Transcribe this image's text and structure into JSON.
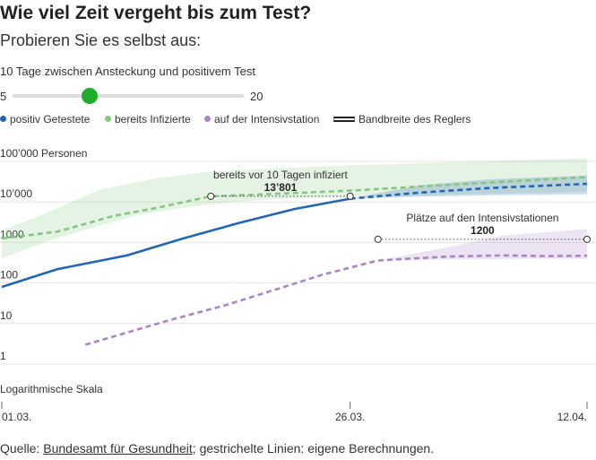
{
  "header": {
    "title": "Wie viel Zeit vergeht bis zum Test?",
    "subtitle": "Probieren Sie es selbst aus:"
  },
  "slider": {
    "label": "10 Tage zwischen Ansteckung und positivem Test",
    "min_label": "5",
    "max_label": "20",
    "min": 5,
    "max": 20,
    "value": 10,
    "knob_color": "#1fad2c"
  },
  "legend": [
    {
      "label": "positiv Getestete",
      "color": "#2266b4",
      "kind": "dot"
    },
    {
      "label": "bereits Infizierte",
      "color": "#86c77e",
      "kind": "dot"
    },
    {
      "label": "auf der Intensivstation",
      "color": "#a986c6",
      "kind": "dot"
    },
    {
      "label": "Bandbreite des Reglers",
      "color": "#222222",
      "kind": "bar"
    }
  ],
  "chart_data": {
    "type": "line",
    "y_scale": "log",
    "ylim": [
      1,
      100000
    ],
    "y_ticks": [
      {
        "value": 100000,
        "label": "100’000 Personen"
      },
      {
        "value": 10000,
        "label": "10’000"
      },
      {
        "value": 1000,
        "label": "1000"
      },
      {
        "value": 100,
        "label": "100"
      },
      {
        "value": 10,
        "label": "10"
      },
      {
        "value": 1,
        "label": "1"
      }
    ],
    "y_scale_note": "Logarithmische Skala",
    "x_ticks": [
      "01.03.",
      "26.03.",
      "12.04."
    ],
    "x_start": "01.03.",
    "x_end": "12.04.",
    "series": [
      {
        "name": "positiv Getestete",
        "color": "#2266b4",
        "style": "solid",
        "points": [
          [
            "01.03.",
            80
          ],
          [
            "05.03.",
            220
          ],
          [
            "10.03.",
            480
          ],
          [
            "14.03.",
            1250
          ],
          [
            "18.03.",
            3000
          ],
          [
            "22.03.",
            6700
          ],
          [
            "26.03.",
            12000
          ]
        ]
      },
      {
        "name": "positiv Getestete",
        "color": "#2266b4",
        "style": "dashed",
        "points": [
          [
            "26.03.",
            12000
          ],
          [
            "31.03.",
            17000
          ],
          [
            "05.04.",
            22000
          ],
          [
            "12.04.",
            28000
          ]
        ]
      },
      {
        "name": "bereits Infizierte",
        "color": "#86c77e",
        "style": "dashed",
        "points": [
          [
            "01.03.",
            1250
          ],
          [
            "05.03.",
            1850
          ],
          [
            "09.03.",
            4500
          ],
          [
            "12.03.",
            7000
          ],
          [
            "16.03.",
            13800
          ],
          [
            "20.03.",
            15500
          ],
          [
            "26.03.",
            19000
          ],
          [
            "31.03.",
            24000
          ],
          [
            "05.04.",
            30000
          ],
          [
            "12.04.",
            41000
          ]
        ]
      },
      {
        "name": "auf der Intensivstation",
        "color": "#a986c6",
        "style": "dashed",
        "points": [
          [
            "07.03.",
            3
          ],
          [
            "10.03.",
            6
          ],
          [
            "13.03.",
            12
          ],
          [
            "17.03.",
            28
          ],
          [
            "21.03.",
            75
          ],
          [
            "24.03.",
            160
          ],
          [
            "28.03.",
            360
          ],
          [
            "02.04.",
            450
          ],
          [
            "06.04.",
            480
          ],
          [
            "09.04.",
            460
          ],
          [
            "12.04.",
            470
          ]
        ]
      }
    ],
    "bands": [
      {
        "series": "bereits Infizierte",
        "color": "#86c77e",
        "lower": [
          [
            "01.03.",
            400
          ],
          [
            "04.03.",
            1000
          ],
          [
            "08.03.",
            2600
          ],
          [
            "11.03.",
            5000
          ],
          [
            "15.03.",
            8000
          ],
          [
            "19.03.",
            11000
          ],
          [
            "24.03.",
            13000
          ],
          [
            "30.03.",
            14000
          ],
          [
            "05.04.",
            16000
          ],
          [
            "12.04.",
            18000
          ]
        ],
        "upper": [
          [
            "01.03.",
            2000
          ],
          [
            "04.03.",
            5000
          ],
          [
            "08.03.",
            20000
          ],
          [
            "12.03.",
            38000
          ],
          [
            "16.03.",
            56000
          ],
          [
            "20.03.",
            66000
          ],
          [
            "26.03.",
            80000
          ],
          [
            "02.04.",
            95000
          ],
          [
            "12.04.",
            120000
          ]
        ]
      },
      {
        "series": "positiv Getestete",
        "color": "#2266b4",
        "lower": [
          [
            "26.03.",
            12000
          ],
          [
            "31.03.",
            13500
          ],
          [
            "05.04.",
            14500
          ],
          [
            "12.04.",
            15500
          ]
        ],
        "upper": [
          [
            "26.03.",
            12000
          ],
          [
            "31.03.",
            26000
          ],
          [
            "05.04.",
            36000
          ],
          [
            "12.04.",
            45000
          ]
        ]
      },
      {
        "series": "auf der Intensivstation",
        "color": "#a986c6",
        "lower": [
          [
            "28.03.",
            360
          ],
          [
            "02.04.",
            380
          ],
          [
            "06.04.",
            390
          ],
          [
            "12.04.",
            395
          ]
        ],
        "upper": [
          [
            "28.03.",
            360
          ],
          [
            "02.04.",
            760
          ],
          [
            "06.04.",
            1500
          ],
          [
            "12.04.",
            2150
          ]
        ]
      }
    ],
    "annotations": [
      {
        "title": "bereits vor 10 Tagen infiziert",
        "value_label": "13’801",
        "from": [
          "16.03.",
          13801
        ],
        "to": [
          "26.03.",
          13801
        ]
      },
      {
        "title": "Plätze auf den Intensivstationen",
        "value_label": "1200",
        "from": [
          "28.03.",
          1200
        ],
        "to": [
          "12.04.",
          1200
        ]
      }
    ]
  },
  "footer": {
    "prefix": "Quelle: ",
    "source_link": "Bundesamt für Gesundheit",
    "suffix": "; gestrichelte Linien: eigene Berechnungen."
  }
}
